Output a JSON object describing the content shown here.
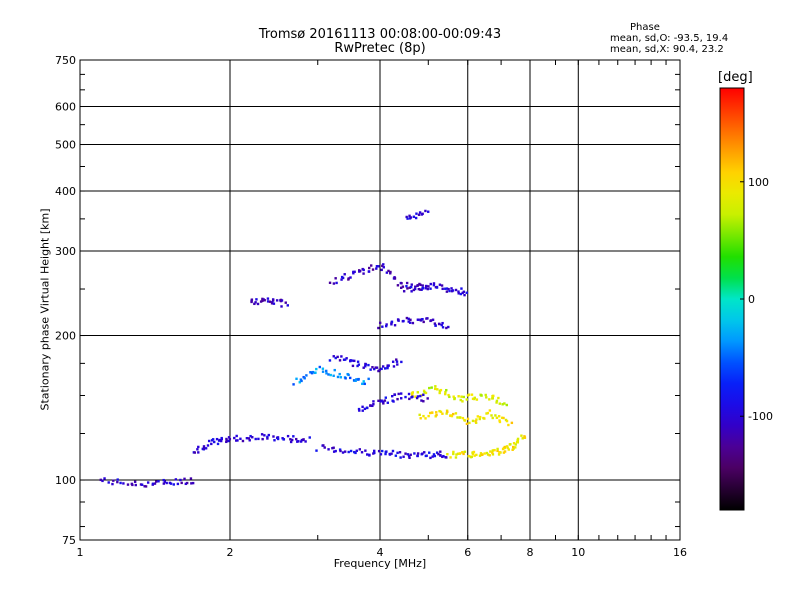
{
  "chart_data": {
    "type": "scatter",
    "title": "Tromsø 20161113 00:08:00-00:09:43",
    "subtitle": "RwPretec (8p)",
    "xlabel": "Frequency [MHz]",
    "ylabel": "Stationary phase Virtual Height [km]",
    "x_scale": "log2",
    "y_scale": "log",
    "xlim": [
      1,
      16
    ],
    "ylim": [
      75,
      750
    ],
    "x_ticks": [
      "1",
      "2",
      "4",
      "6",
      "8",
      "10",
      "16"
    ],
    "y_ticks": [
      "75",
      "100",
      "200",
      "300",
      "400",
      "500",
      "600",
      "750"
    ],
    "grid": true,
    "phase_box": {
      "title": "Phase",
      "line_o": "mean, sd,O: -93.5, 19.4",
      "line_x": "mean, sd,X:  90.4, 23.2"
    },
    "colorbar": {
      "unit": "[deg]",
      "ticks": [
        "100",
        "0",
        "-100"
      ],
      "range": [
        -180,
        180
      ]
    },
    "traces": [
      {
        "x": [
          1.1,
          1.3,
          1.5,
          1.7
        ],
        "y": [
          100,
          98,
          99,
          100
        ],
        "phase": -105
      },
      {
        "x": [
          1.7,
          1.85,
          2.0,
          2.3,
          2.6,
          2.9
        ],
        "y": [
          115,
          120,
          122,
          123,
          122,
          121
        ],
        "phase": -100
      },
      {
        "x": [
          3.0,
          3.5,
          4.0,
          4.5,
          5.0,
          5.5
        ],
        "y": [
          117,
          115,
          114,
          113,
          113,
          113
        ],
        "phase": -95
      },
      {
        "x": [
          5.5,
          6.0,
          6.5,
          7.0,
          7.4,
          7.8
        ],
        "y": [
          113,
          113,
          114,
          115,
          118,
          125
        ],
        "phase": 95
      },
      {
        "x": [
          2.2,
          2.4,
          2.6
        ],
        "y": [
          235,
          236,
          233
        ],
        "phase": -110
      },
      {
        "x": [
          3.2,
          3.6,
          4.0,
          4.4,
          5.0
        ],
        "y": [
          260,
          270,
          280,
          255,
          250
        ],
        "phase": -110
      },
      {
        "x": [
          4.0,
          4.5,
          5.0,
          5.5
        ],
        "y": [
          210,
          215,
          215,
          210
        ],
        "phase": -105
      },
      {
        "x": [
          4.5,
          5.0,
          5.5,
          6.0
        ],
        "y": [
          250,
          255,
          250,
          245
        ],
        "phase": -100
      },
      {
        "x": [
          2.7,
          3.0,
          3.4,
          3.8
        ],
        "y": [
          160,
          170,
          165,
          160
        ],
        "phase": -40
      },
      {
        "x": [
          3.2,
          3.6,
          4.0,
          4.4
        ],
        "y": [
          180,
          175,
          170,
          178
        ],
        "phase": -100
      },
      {
        "x": [
          4.6,
          5.2,
          5.8,
          6.5,
          7.2
        ],
        "y": [
          150,
          155,
          148,
          150,
          145
        ],
        "phase": 80
      },
      {
        "x": [
          4.8,
          5.4,
          6.0,
          6.6,
          7.4
        ],
        "y": [
          135,
          140,
          132,
          138,
          130
        ],
        "phase": 95
      },
      {
        "x": [
          3.6,
          4.0,
          4.4,
          5.0
        ],
        "y": [
          140,
          145,
          150,
          148
        ],
        "phase": -100
      },
      {
        "x": [
          4.5,
          5.0
        ],
        "y": [
          350,
          360
        ],
        "phase": -100
      }
    ]
  }
}
